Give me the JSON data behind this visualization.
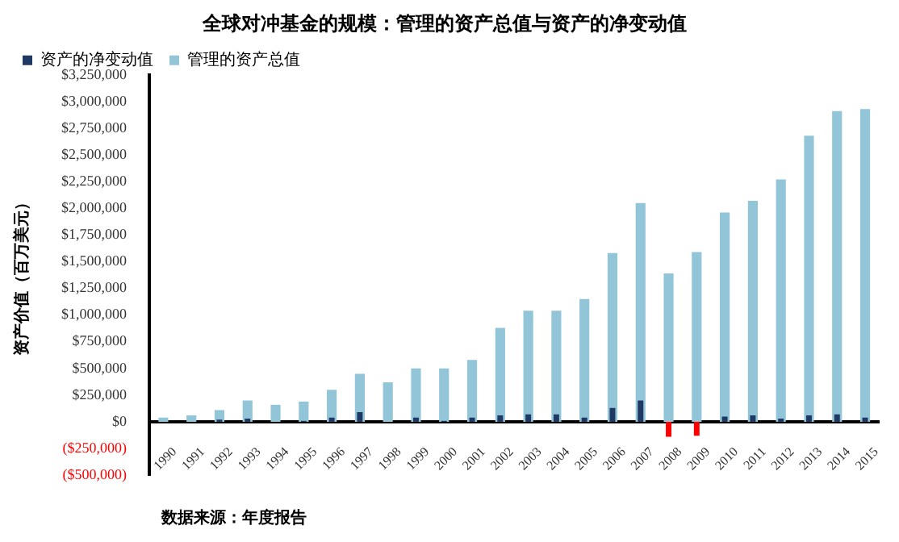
{
  "chart_data": {
    "type": "bar",
    "title": "全球对冲基金的规模：管理的资产总值与资产的净变动值",
    "ylabel": "资产价值（百万美元）",
    "annotations": [
      "数据来源：年度报告"
    ],
    "categories": [
      "1990",
      "1991",
      "1992",
      "1993",
      "1994",
      "1995",
      "1996",
      "1997",
      "1998",
      "1999",
      "2000",
      "2001",
      "2002",
      "2003",
      "2004",
      "2005",
      "2006",
      "2007",
      "2008",
      "2009",
      "2010",
      "2011",
      "2012",
      "2013",
      "2014",
      "2015"
    ],
    "series": [
      {
        "name": "资产的净变动值",
        "color": "#1f3864",
        "colors": [
          "#1f3864",
          "#1f3864",
          "#1f3864",
          "#1f3864",
          "#1f3864",
          "#1f3864",
          "#1f3864",
          "#1f3864",
          "#1f3864",
          "#1f3864",
          "#1f3864",
          "#1f3864",
          "#1f3864",
          "#1f3864",
          "#1f3864",
          "#1f3864",
          "#1f3864",
          "#1f3864",
          "#ff0000",
          "#ff0000",
          "#1f3864",
          "#1f3864",
          "#1f3864",
          "#1f3864",
          "#1f3864",
          "#1f3864"
        ],
        "values": [
          0,
          0,
          20000,
          30000,
          0,
          10000,
          40000,
          90000,
          0,
          40000,
          10000,
          40000,
          60000,
          70000,
          70000,
          40000,
          130000,
          200000,
          -140000,
          -130000,
          50000,
          60000,
          30000,
          60000,
          70000,
          40000
        ]
      },
      {
        "name": "管理的资产总值",
        "color": "#92c5d8",
        "values": [
          40000,
          60000,
          110000,
          200000,
          160000,
          190000,
          300000,
          450000,
          370000,
          500000,
          500000,
          580000,
          880000,
          1040000,
          1040000,
          1150000,
          1580000,
          2050000,
          1390000,
          1590000,
          1960000,
          2070000,
          2270000,
          2680000,
          2910000,
          2930000
        ]
      }
    ],
    "ylim": [
      -500000,
      3250000
    ],
    "yticks": [
      {
        "value": -500000,
        "label": "($500,000)"
      },
      {
        "value": -250000,
        "label": "($250,000)"
      },
      {
        "value": 0,
        "label": "$0"
      },
      {
        "value": 250000,
        "label": "$250,000"
      },
      {
        "value": 500000,
        "label": "$500,000"
      },
      {
        "value": 750000,
        "label": "$750,000"
      },
      {
        "value": 1000000,
        "label": "$1,000,000"
      },
      {
        "value": 1250000,
        "label": "$1,250,000"
      },
      {
        "value": 1500000,
        "label": "$1,500,000"
      },
      {
        "value": 1750000,
        "label": "$1,750,000"
      },
      {
        "value": 2000000,
        "label": "$2,000,000"
      },
      {
        "value": 2250000,
        "label": "$2,250,000"
      },
      {
        "value": 2500000,
        "label": "$2,500,000"
      },
      {
        "value": 2750000,
        "label": "$2,750,000"
      },
      {
        "value": 3000000,
        "label": "$3,000,000"
      },
      {
        "value": 3250000,
        "label": "$3,250,000"
      }
    ],
    "grid": false,
    "legend": "top left"
  }
}
